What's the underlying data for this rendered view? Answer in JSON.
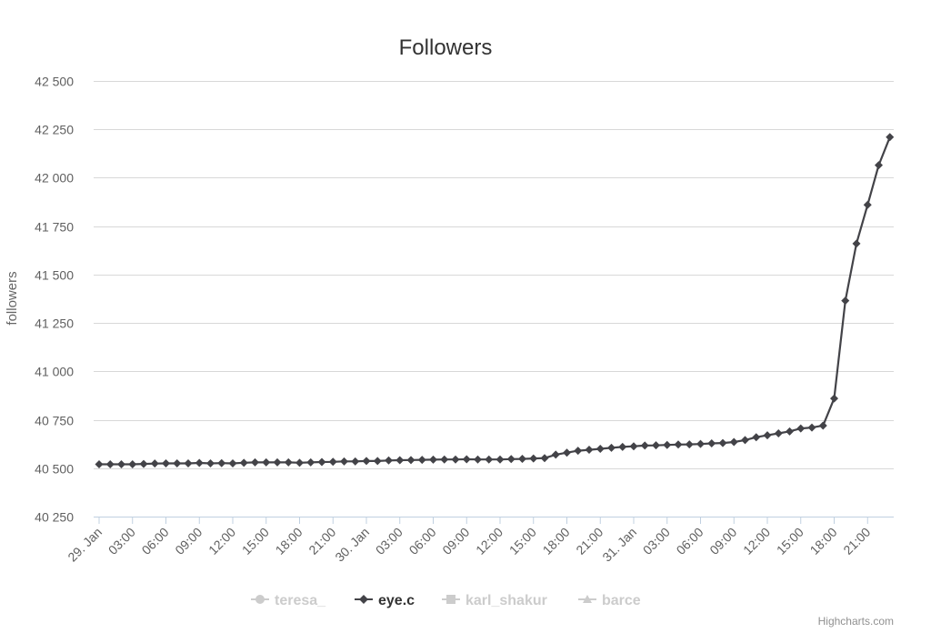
{
  "chart_data": {
    "type": "line",
    "title": "Followers",
    "ylabel": "followers",
    "xlabel": "",
    "ylim": [
      40250,
      42500
    ],
    "yticks": [
      40250,
      40500,
      40750,
      41000,
      41250,
      41500,
      41750,
      42000,
      42250,
      42500
    ],
    "ytick_labels": [
      "40 250",
      "40 500",
      "40 750",
      "41 000",
      "41 250",
      "41 500",
      "41 750",
      "42 000",
      "42 250",
      "42 500"
    ],
    "xticks": [
      "29. Jan",
      "03:00",
      "06:00",
      "09:00",
      "12:00",
      "15:00",
      "18:00",
      "21:00",
      "30. Jan",
      "03:00",
      "06:00",
      "09:00",
      "12:00",
      "15:00",
      "18:00",
      "21:00",
      "31. Jan",
      "03:00",
      "06:00",
      "09:00",
      "12:00",
      "15:00",
      "18:00",
      "21:00"
    ],
    "xrange_hours": [
      0,
      71.5
    ],
    "grid": true,
    "legend_placement": "bottom-center",
    "series": [
      {
        "name": "eye.c",
        "color": "#434348",
        "marker": "diamond",
        "x_hours": [
          0,
          1,
          2,
          3,
          4,
          5,
          6,
          7,
          8,
          9,
          10,
          11,
          12,
          13,
          14,
          15,
          16,
          17,
          18,
          19,
          20,
          21,
          22,
          23,
          24,
          25,
          26,
          27,
          28,
          29,
          30,
          31,
          32,
          33,
          34,
          35,
          36,
          37,
          38,
          39,
          40,
          41,
          42,
          43,
          44,
          45,
          46,
          47,
          48,
          49,
          50,
          51,
          52,
          53,
          54,
          55,
          56,
          57,
          58,
          59,
          60,
          61,
          62,
          63,
          64,
          65,
          66,
          67,
          68,
          69,
          70,
          71
        ],
        "values": [
          40520,
          40520,
          40520,
          40520,
          40522,
          40524,
          40525,
          40525,
          40525,
          40527,
          40525,
          40526,
          40525,
          40528,
          40530,
          40530,
          40530,
          40530,
          40528,
          40530,
          40532,
          40533,
          40535,
          40535,
          40537,
          40537,
          40540,
          40541,
          40542,
          40543,
          40544,
          40545,
          40545,
          40546,
          40545,
          40545,
          40545,
          40547,
          40548,
          40550,
          40552,
          40570,
          40580,
          40590,
          40595,
          40600,
          40605,
          40610,
          40613,
          40617,
          40618,
          40620,
          40622,
          40623,
          40625,
          40628,
          40630,
          40635,
          40645,
          40660,
          40670,
          40680,
          40690,
          40705,
          40710,
          40720,
          40860,
          41365,
          41660,
          41860,
          42065,
          42210
        ]
      }
    ],
    "legend": [
      {
        "name": "teresa_",
        "color": "#cccccc",
        "marker": "circle",
        "visible": false
      },
      {
        "name": "eye.c",
        "color": "#434348",
        "marker": "diamond",
        "visible": true
      },
      {
        "name": "karl_shakur",
        "color": "#cccccc",
        "marker": "square",
        "visible": false
      },
      {
        "name": "barce",
        "color": "#cccccc",
        "marker": "triangle",
        "visible": false
      }
    ],
    "credit": "Highcharts.com"
  }
}
